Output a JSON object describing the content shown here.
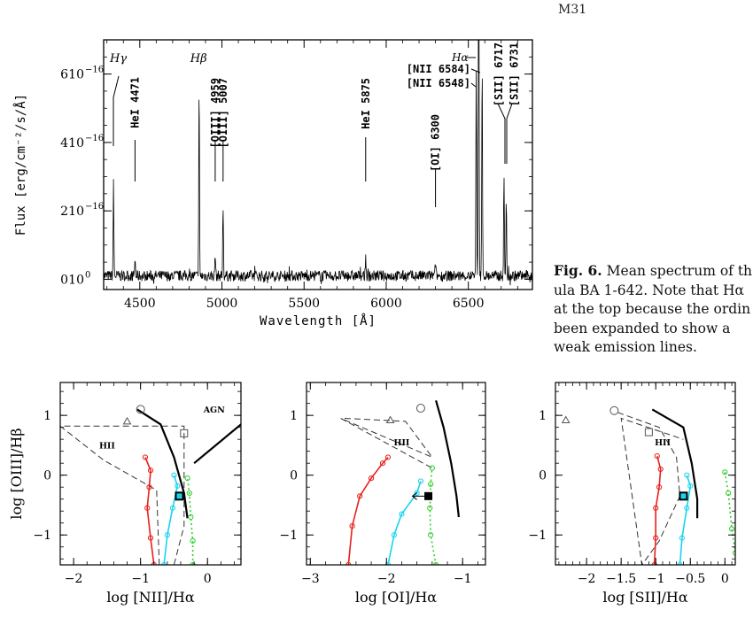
{
  "header": {
    "label": "M31"
  },
  "caption": {
    "label": "Fig. 6.",
    "lines": [
      "Mean spectrum of th",
      "ula BA 1-642. Note that Hα",
      "at the top because the ordin",
      "been expanded to show a",
      "weak emission lines."
    ]
  },
  "chart_data": [
    {
      "type": "line",
      "xlabel": "Wavelength [Å]",
      "ylabel": "Flux [erg/cm⁻²/s/Å]",
      "xlim": [
        4280,
        6890
      ],
      "ylim": [
        -3e-17,
        7e-16
      ],
      "x_ticks": [
        4500,
        5000,
        5500,
        6000,
        6500
      ],
      "y_ticks": [
        {
          "value": 0,
          "mantissa": "0",
          "exp": "0"
        },
        {
          "value": 2e-16,
          "mantissa": "2",
          "exp": "−16"
        },
        {
          "value": 4e-16,
          "mantissa": "4",
          "exp": "−16"
        },
        {
          "value": 6e-16,
          "mantissa": "6",
          "exp": "−16"
        }
      ],
      "lines": [
        {
          "id": "hg",
          "wl": 4340,
          "peak": 2.7e-16,
          "label": "Hγ"
        },
        {
          "id": "hei4471",
          "wl": 4471,
          "peak": 5e-17,
          "label": "HeI 4471"
        },
        {
          "id": "hb",
          "wl": 4861,
          "peak": 5.6e-16,
          "label": "Hβ"
        },
        {
          "id": "oiii4959",
          "wl": 4959,
          "peak": 6.5e-17,
          "label": "[OIII] 4959"
        },
        {
          "id": "oiii5007",
          "wl": 5007,
          "peak": 2.1e-16,
          "label": "[OIII] 5007"
        },
        {
          "id": "hei5875",
          "wl": 5875,
          "peak": 6e-17,
          "label": "HeI 5875"
        },
        {
          "id": "oi6300",
          "wl": 6300,
          "peak": 4e-17,
          "label": "[OI] 6300"
        },
        {
          "id": "nii6548",
          "wl": 6548,
          "peak": 6e-16,
          "label": "[NII 6548]"
        },
        {
          "id": "ha",
          "wl": 6563,
          "peak": 1.2e-15,
          "label": "Hα"
        },
        {
          "id": "nii6584",
          "wl": 6584,
          "peak": 6.3e-16,
          "label": "[NII 6584]"
        },
        {
          "id": "sii6717",
          "wl": 6717,
          "peak": 2.9e-16,
          "label": "[SII] 6717"
        },
        {
          "id": "sii6731",
          "wl": 6731,
          "peak": 2.2e-16,
          "label": "[SII] 6731"
        }
      ]
    },
    {
      "type": "scatter",
      "id": "nii",
      "xlabel": "log [NII]/Hα",
      "ylabel": "log [OIII]/Hβ",
      "xlim": [
        -2.2,
        0.5
      ],
      "ylim": [
        -1.5,
        1.55
      ],
      "x_ticks": [
        -2,
        -1,
        0
      ],
      "y_ticks": [
        -1,
        0,
        1
      ],
      "region_labels": [
        {
          "text": "HII",
          "x": -1.5,
          "y": 0.45
        },
        {
          "text": "AGN",
          "x": 0.1,
          "y": 1.05
        }
      ],
      "hii_boundary": [
        [
          -0.72,
          -1.5
        ],
        [
          -0.76,
          -0.25
        ],
        [
          -1.55,
          0.25
        ],
        [
          -2.2,
          0.82
        ],
        [
          -0.35,
          0.82
        ],
        [
          -0.35,
          -0.85
        ],
        [
          -0.5,
          -1.5
        ]
      ],
      "max_starburst": [
        [
          -1.05,
          1.1
        ],
        [
          -0.7,
          0.85
        ],
        [
          -0.5,
          0.3
        ],
        [
          -0.35,
          -0.3
        ],
        [
          -0.3,
          -0.72
        ]
      ],
      "agn_line": [
        [
          -0.2,
          0.2
        ],
        [
          0.5,
          0.85
        ]
      ],
      "red_model": [
        [
          -0.8,
          -1.5
        ],
        [
          -0.85,
          -1.05
        ],
        [
          -0.9,
          -0.55
        ],
        [
          -0.87,
          -0.2
        ],
        [
          -0.85,
          0.08
        ],
        [
          -0.93,
          0.3
        ]
      ],
      "cyan_model": [
        [
          -0.65,
          -1.5
        ],
        [
          -0.6,
          -1.0
        ],
        [
          -0.52,
          -0.55
        ],
        [
          -0.45,
          -0.18
        ],
        [
          -0.5,
          0.0
        ]
      ],
      "green_model": [
        [
          -0.22,
          -1.5
        ],
        [
          -0.22,
          -1.1
        ],
        [
          -0.25,
          -0.7
        ],
        [
          -0.27,
          -0.3
        ],
        [
          -0.3,
          -0.05
        ]
      ],
      "circle": [
        -1.0,
        1.1
      ],
      "triangle": [
        -1.2,
        0.9
      ],
      "square": [
        -0.35,
        0.7
      ],
      "observed": [
        -0.42,
        -0.35
      ]
    },
    {
      "type": "scatter",
      "id": "oi",
      "xlabel": "log [OI]/Hα",
      "ylabel": "",
      "xlim": [
        -3.05,
        -0.7
      ],
      "ylim": [
        -1.5,
        1.55
      ],
      "x_ticks": [
        -3,
        -2,
        -1
      ],
      "y_ticks": [
        -1,
        0,
        1
      ],
      "region_labels": [
        {
          "text": "HII",
          "x": -1.8,
          "y": 0.5
        }
      ],
      "hii_boundary": [
        [
          -2.55,
          0.95
        ],
        [
          -1.75,
          0.9
        ],
        [
          -1.4,
          0.3
        ],
        [
          -2.6,
          0.95
        ],
        [
          -1.4,
          0.12
        ]
      ],
      "max_starburst": [
        [
          -1.35,
          1.25
        ],
        [
          -1.25,
          0.8
        ],
        [
          -1.15,
          0.2
        ],
        [
          -1.08,
          -0.35
        ],
        [
          -1.05,
          -0.7
        ]
      ],
      "red_model": [
        [
          -2.5,
          -1.5
        ],
        [
          -2.45,
          -0.85
        ],
        [
          -2.35,
          -0.35
        ],
        [
          -2.2,
          -0.05
        ],
        [
          -2.05,
          0.2
        ],
        [
          -1.98,
          0.3
        ]
      ],
      "cyan_model": [
        [
          -1.98,
          -1.5
        ],
        [
          -1.9,
          -1.0
        ],
        [
          -1.8,
          -0.65
        ],
        [
          -1.6,
          -0.3
        ],
        [
          -1.55,
          -0.1
        ]
      ],
      "green_model": [
        [
          -1.35,
          -1.5
        ],
        [
          -1.42,
          -1.0
        ],
        [
          -1.43,
          -0.55
        ],
        [
          -1.42,
          -0.15
        ],
        [
          -1.4,
          0.12
        ]
      ],
      "circle": [
        -1.55,
        1.12
      ],
      "triangle": [
        -1.95,
        0.92
      ],
      "observed": [
        -1.45,
        -0.35
      ],
      "upper_limit_arrow": true
    },
    {
      "type": "scatter",
      "id": "sii",
      "xlabel": "log [SII]/Hα",
      "ylabel": "",
      "xlim": [
        -2.45,
        0.15
      ],
      "ylim": [
        -1.5,
        1.55
      ],
      "x_ticks": [
        -2,
        -1.5,
        -1,
        -0.5,
        0
      ],
      "y_ticks": [
        -1,
        0,
        1
      ],
      "region_labels": [
        {
          "text": "HII",
          "x": -0.9,
          "y": 0.5
        }
      ],
      "hii_boundary": [
        [
          -1.55,
          1.05
        ],
        [
          -0.95,
          0.8
        ],
        [
          -0.7,
          0.3
        ],
        [
          -0.65,
          -0.35
        ],
        [
          -0.95,
          -1.1
        ],
        [
          -1.2,
          -1.5
        ],
        [
          -1.5,
          0.95
        ],
        [
          -0.6,
          0.6
        ]
      ],
      "max_starburst": [
        [
          -1.05,
          1.1
        ],
        [
          -0.6,
          0.8
        ],
        [
          -0.48,
          0.2
        ],
        [
          -0.4,
          -0.4
        ],
        [
          -0.4,
          -0.72
        ]
      ],
      "red_model": [
        [
          -1.02,
          -1.5
        ],
        [
          -1.0,
          -1.05
        ],
        [
          -1.0,
          -0.55
        ],
        [
          -0.95,
          -0.2
        ],
        [
          -0.93,
          0.1
        ],
        [
          -0.98,
          0.32
        ]
      ],
      "cyan_model": [
        [
          -0.65,
          -1.5
        ],
        [
          -0.62,
          -1.05
        ],
        [
          -0.55,
          -0.55
        ],
        [
          -0.5,
          -0.18
        ],
        [
          -0.55,
          0.0
        ]
      ],
      "green_model": [
        [
          0.0,
          0.05
        ],
        [
          0.05,
          -0.3
        ],
        [
          0.1,
          -0.9
        ],
        [
          0.15,
          -1.3
        ]
      ],
      "circle": [
        -1.6,
        1.08
      ],
      "triangle": [
        -2.3,
        0.92
      ],
      "square": [
        -1.1,
        0.72
      ],
      "observed": [
        -0.6,
        -0.35
      ]
    }
  ]
}
